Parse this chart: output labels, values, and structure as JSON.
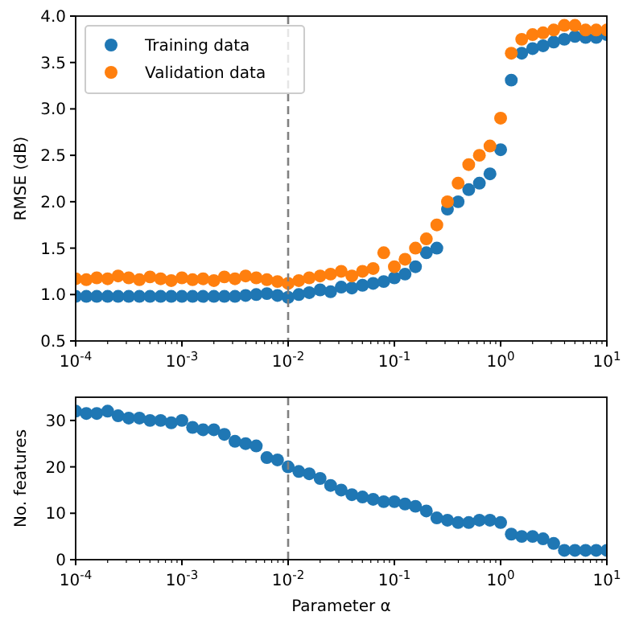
{
  "chart_data": [
    {
      "type": "scatter",
      "ylabel": "RMSE (dB)",
      "xlim": [
        0.0001,
        10
      ],
      "log": "x",
      "ylim": [
        0.5,
        4
      ],
      "xticks": [
        {
          "value": 0.0001,
          "label": "10$^{-4}$"
        },
        {
          "value": 0.001,
          "label": "10$^{-3}$"
        },
        {
          "value": 0.01,
          "label": "10$^{-2}$"
        },
        {
          "value": 0.1,
          "label": "10$^{-1}$"
        },
        {
          "value": 1,
          "label": "10$^{0}$"
        },
        {
          "value": 10,
          "label": "10$^{1}$"
        }
      ],
      "yticks": [
        0.5,
        {
          "value": 1,
          "label": "1.0"
        },
        1.5,
        {
          "value": 2,
          "label": "2.0"
        },
        2.5,
        {
          "value": 3,
          "label": "3.0"
        },
        3.5,
        {
          "value": 4,
          "label": "4.0"
        }
      ],
      "x": [
        0.0001,
        0.000126,
        0.000158,
        0.0002,
        0.000251,
        0.000316,
        0.000398,
        0.000501,
        0.000631,
        0.000794,
        0.001,
        0.00126,
        0.00158,
        0.002,
        0.00251,
        0.00316,
        0.00398,
        0.00501,
        0.00631,
        0.00794,
        0.01,
        0.0126,
        0.0158,
        0.02,
        0.0251,
        0.0316,
        0.0398,
        0.0501,
        0.0631,
        0.0794,
        0.1,
        0.126,
        0.158,
        0.2,
        0.251,
        0.316,
        0.398,
        0.501,
        0.631,
        0.794,
        1,
        1.26,
        1.58,
        2,
        2.51,
        3.16,
        3.98,
        5.01,
        6.31,
        7.94,
        10
      ],
      "series": [
        {
          "name": "Training data",
          "color": "#1f77b4",
          "values": [
            0.98,
            0.98,
            0.98,
            0.98,
            0.98,
            0.98,
            0.98,
            0.98,
            0.98,
            0.98,
            0.98,
            0.98,
            0.98,
            0.98,
            0.98,
            0.98,
            0.99,
            1.0,
            1.01,
            0.99,
            0.97,
            1.0,
            1.02,
            1.05,
            1.03,
            1.08,
            1.07,
            1.1,
            1.12,
            1.14,
            1.18,
            1.22,
            1.3,
            1.45,
            1.5,
            1.92,
            2.0,
            2.13,
            2.2,
            2.3,
            2.56,
            3.31,
            3.6,
            3.65,
            3.68,
            3.72,
            3.75,
            3.78,
            3.77,
            3.77,
            3.8
          ]
        },
        {
          "name": "Validation data",
          "color": "#ff7f0e",
          "values": [
            1.17,
            1.16,
            1.18,
            1.17,
            1.2,
            1.18,
            1.16,
            1.19,
            1.17,
            1.15,
            1.18,
            1.16,
            1.17,
            1.15,
            1.19,
            1.17,
            1.2,
            1.18,
            1.16,
            1.14,
            1.12,
            1.15,
            1.18,
            1.2,
            1.22,
            1.25,
            1.2,
            1.25,
            1.28,
            1.45,
            1.3,
            1.38,
            1.5,
            1.6,
            1.75,
            2.0,
            2.2,
            2.4,
            2.5,
            2.6,
            2.9,
            3.6,
            3.75,
            3.8,
            3.82,
            3.85,
            3.9,
            3.9,
            3.85,
            3.85,
            3.85
          ]
        }
      ],
      "ref_lines": [
        {
          "axis": "x",
          "value": 0.01,
          "color": "#808080",
          "line_style": "dashed"
        }
      ],
      "marker": "circle",
      "legend": "top left",
      "grid": false
    },
    {
      "type": "scatter",
      "xlabel": "Parameter α",
      "ylabel": "No. features",
      "xlim": [
        0.0001,
        10
      ],
      "log": "x",
      "ylim": [
        0,
        35
      ],
      "xticks": [
        {
          "value": 0.0001,
          "label": "10$^{-4}$"
        },
        {
          "value": 0.001,
          "label": "10$^{-3}$"
        },
        {
          "value": 0.01,
          "label": "10$^{-2}$"
        },
        {
          "value": 0.1,
          "label": "10$^{-1}$"
        },
        {
          "value": 1,
          "label": "10$^{0}$"
        },
        {
          "value": 10,
          "label": "10$^{1}$"
        }
      ],
      "yticks": [
        0,
        10,
        20,
        30
      ],
      "x": [
        0.0001,
        0.000126,
        0.000158,
        0.0002,
        0.000251,
        0.000316,
        0.000398,
        0.000501,
        0.000631,
        0.000794,
        0.001,
        0.00126,
        0.00158,
        0.002,
        0.00251,
        0.00316,
        0.00398,
        0.00501,
        0.00631,
        0.00794,
        0.01,
        0.0126,
        0.0158,
        0.02,
        0.0251,
        0.0316,
        0.0398,
        0.0501,
        0.0631,
        0.0794,
        0.1,
        0.126,
        0.158,
        0.2,
        0.251,
        0.316,
        0.398,
        0.501,
        0.631,
        0.794,
        1,
        1.26,
        1.58,
        2,
        2.51,
        3.16,
        3.98,
        5.01,
        6.31,
        7.94,
        10
      ],
      "series": [
        {
          "color": "#1f77b4",
          "values": [
            32,
            31.5,
            31.5,
            32,
            31,
            30.5,
            30.5,
            30,
            30,
            29.5,
            30,
            28.5,
            28,
            28,
            27,
            25.5,
            25,
            24.5,
            22,
            21.5,
            20,
            19,
            18.5,
            17.5,
            16,
            15,
            14,
            13.5,
            13,
            12.5,
            12.5,
            12,
            11.5,
            10.5,
            9,
            8.5,
            8,
            8,
            8.5,
            8.5,
            8,
            5.5,
            5,
            5,
            4.5,
            3.5,
            2,
            2,
            2,
            2,
            2
          ]
        }
      ],
      "ref_lines": [
        {
          "axis": "x",
          "value": 0.01,
          "color": "#808080",
          "line_style": "dashed"
        }
      ],
      "marker": "circle",
      "grid": false
    }
  ]
}
